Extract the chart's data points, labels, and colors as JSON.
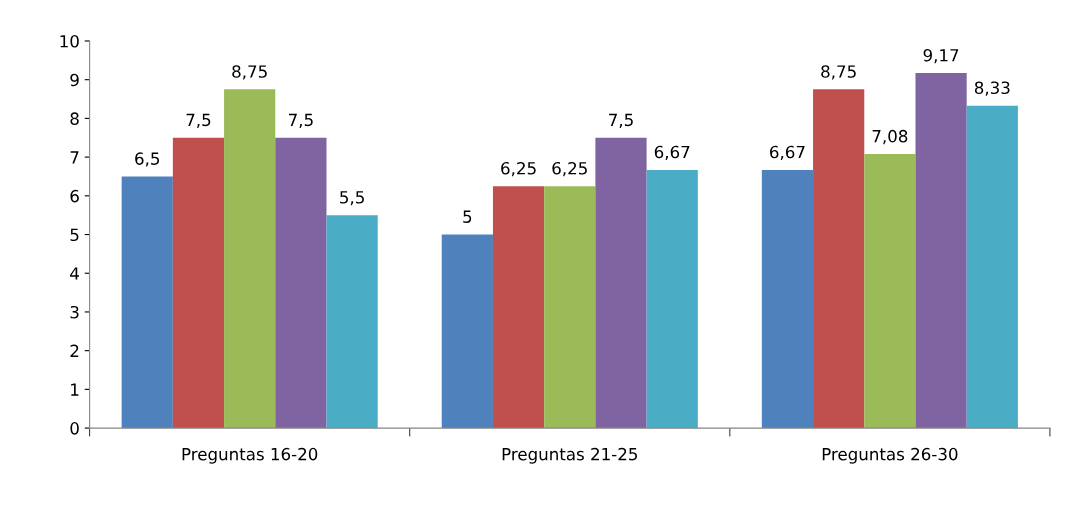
{
  "chart_data": {
    "type": "bar",
    "categories": [
      "Preguntas 16-20",
      "Preguntas 21-25",
      "Preguntas 26-30"
    ],
    "series": [
      {
        "color": "#4f81bd",
        "values": [
          6.5,
          5,
          6.67
        ],
        "value_labels": [
          "6,5",
          "5",
          "6,67"
        ]
      },
      {
        "color": "#c0504d",
        "values": [
          7.5,
          6.25,
          8.75
        ],
        "value_labels": [
          "7,5",
          "6,25",
          "8,75"
        ]
      },
      {
        "color": "#9bbb59",
        "values": [
          8.75,
          6.25,
          7.08
        ],
        "value_labels": [
          "8,75",
          "6,25",
          "7,08"
        ]
      },
      {
        "color": "#8064a2",
        "values": [
          7.5,
          7.5,
          9.17
        ],
        "value_labels": [
          "7,5",
          "7,5",
          "9,17"
        ]
      },
      {
        "color": "#4bacc6",
        "values": [
          5.5,
          6.67,
          8.33
        ],
        "value_labels": [
          "5,5",
          "6,67",
          "8,33"
        ]
      }
    ],
    "ylim": [
      0,
      10
    ],
    "yticks": [
      0,
      1,
      2,
      3,
      4,
      5,
      6,
      7,
      8,
      9,
      10
    ],
    "grid": false
  }
}
